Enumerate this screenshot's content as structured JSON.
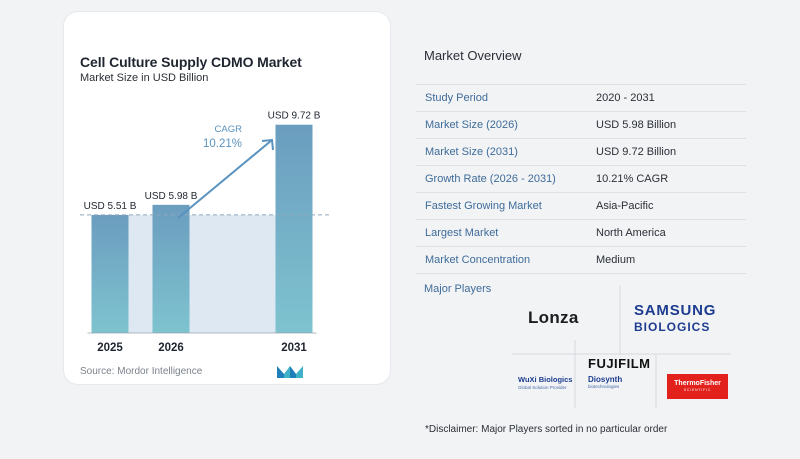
{
  "chart_data": {
    "type": "bar",
    "title": "Cell Culture Supply CDMO Market",
    "subtitle": "Market Size in USD Billion",
    "categories": [
      "2025",
      "2026",
      "2031"
    ],
    "values": [
      5.51,
      5.98,
      9.72
    ],
    "data_labels": [
      "USD 5.51 B",
      "USD 5.98 B",
      "USD 9.72 B"
    ],
    "cagr_label": "CAGR",
    "cagr_value": "10.21%",
    "source": "Source:  Mordor Intelligence",
    "ylim": [
      0,
      10.5
    ],
    "colors": {
      "bar": "#6b9dbf",
      "bar_bottom": "#7ec3cf",
      "band": "#dde8f2",
      "arrow": "#5a93bf",
      "cagr": "#5a93bf",
      "dashed": "#8da6bd"
    }
  },
  "overview": {
    "title": "Market Overview",
    "rows": [
      {
        "key": "Study Period",
        "value": "2020 - 2031"
      },
      {
        "key": "Market Size (2026)",
        "value": "USD 5.98 Billion"
      },
      {
        "key": "Market Size (2031)",
        "value": "USD 9.72 Billion"
      },
      {
        "key": "Growth Rate (2026 - 2031)",
        "value": "10.21% CAGR"
      },
      {
        "key": "Fastest Growing Market",
        "value": "Asia-Pacific"
      },
      {
        "key": "Largest Market",
        "value": "North America"
      },
      {
        "key": "Market Concentration",
        "value": "Medium"
      }
    ],
    "players_label": "Major Players",
    "disclaimer": "*Disclaimer: Major Players sorted in no particular order"
  },
  "players": {
    "lonza": "Lonza",
    "samsung_1": "SAMSUNG",
    "samsung_2": "BIOLOGICS",
    "wuxi_1": "WuXi Biologics",
    "wuxi_2": "Global Solution Provider",
    "fuji_1": "FUJIFILM",
    "fuji_2": "Diosynth",
    "fuji_3": "biotechnologies",
    "thermo_1": "ThermoFisher",
    "thermo_2": "SCIENTIFIC"
  }
}
